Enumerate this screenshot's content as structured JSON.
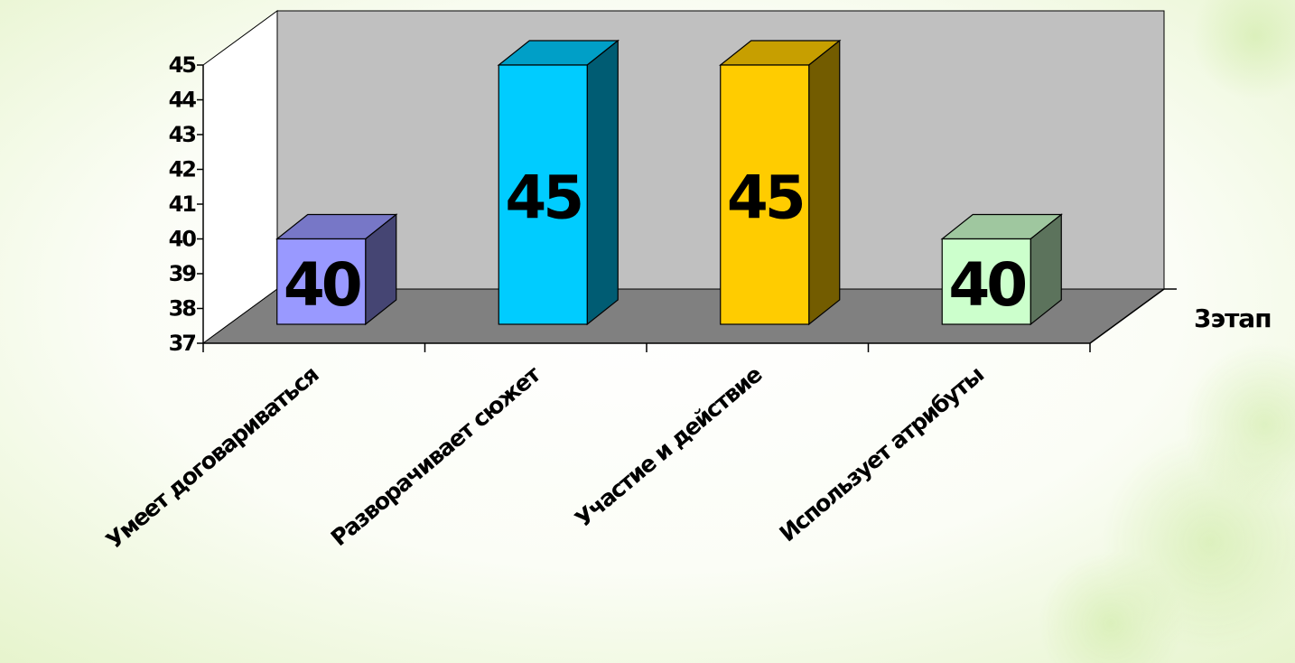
{
  "chart_data": {
    "type": "bar",
    "categories": [
      "Умеет договариваться",
      "Разворачивает сюжет",
      "Участие и действие",
      "Использует атрибуты"
    ],
    "series": [
      {
        "name": "3этап",
        "values": [
          40,
          45,
          45,
          40
        ]
      }
    ],
    "data_labels": [
      "40",
      "45",
      "45",
      "40"
    ],
    "yticks": [
      "37",
      "38",
      "39",
      "40",
      "41",
      "42",
      "43",
      "44",
      "45"
    ],
    "ylim": [
      37,
      45
    ],
    "title": "",
    "xlabel": "",
    "ylabel": "",
    "grid": false,
    "style": "3d-column",
    "colors": {
      "bars": [
        "#9999FF",
        "#00CCFF",
        "#FFCC00",
        "#CCFFCC"
      ],
      "back_wall": "#C0C0C0",
      "side_wall": "#FFFFFF",
      "floor": "#808080"
    }
  }
}
